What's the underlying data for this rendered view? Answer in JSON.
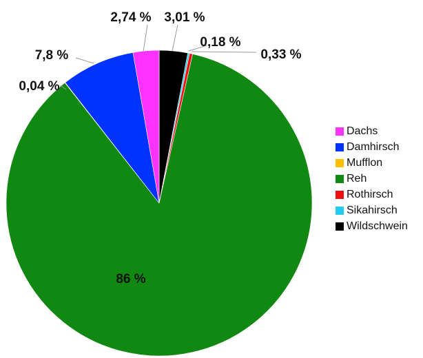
{
  "chart_data": {
    "type": "pie",
    "title": "",
    "slices": [
      {
        "label": "Dachs",
        "value": 2.74,
        "display": "2,74 %",
        "color": "#ff33ff"
      },
      {
        "label": "Damhirsch",
        "value": 7.8,
        "display": "7,8 %",
        "color": "#0033ff"
      },
      {
        "label": "Mufflon",
        "value": 0.04,
        "display": "0,04 %",
        "color": "#ffbf00"
      },
      {
        "label": "Reh",
        "value": 86,
        "display": "86 %",
        "color": "#118811"
      },
      {
        "label": "Rothirsch",
        "value": 0.33,
        "display": "0,33 %",
        "color": "#ee1111"
      },
      {
        "label": "Sikahirsch",
        "value": 0.18,
        "display": "0,18 %",
        "color": "#22ccee"
      },
      {
        "label": "Wildschwein",
        "value": 3.01,
        "display": "3,01 %",
        "color": "#000000"
      }
    ],
    "legend_position": "right"
  }
}
